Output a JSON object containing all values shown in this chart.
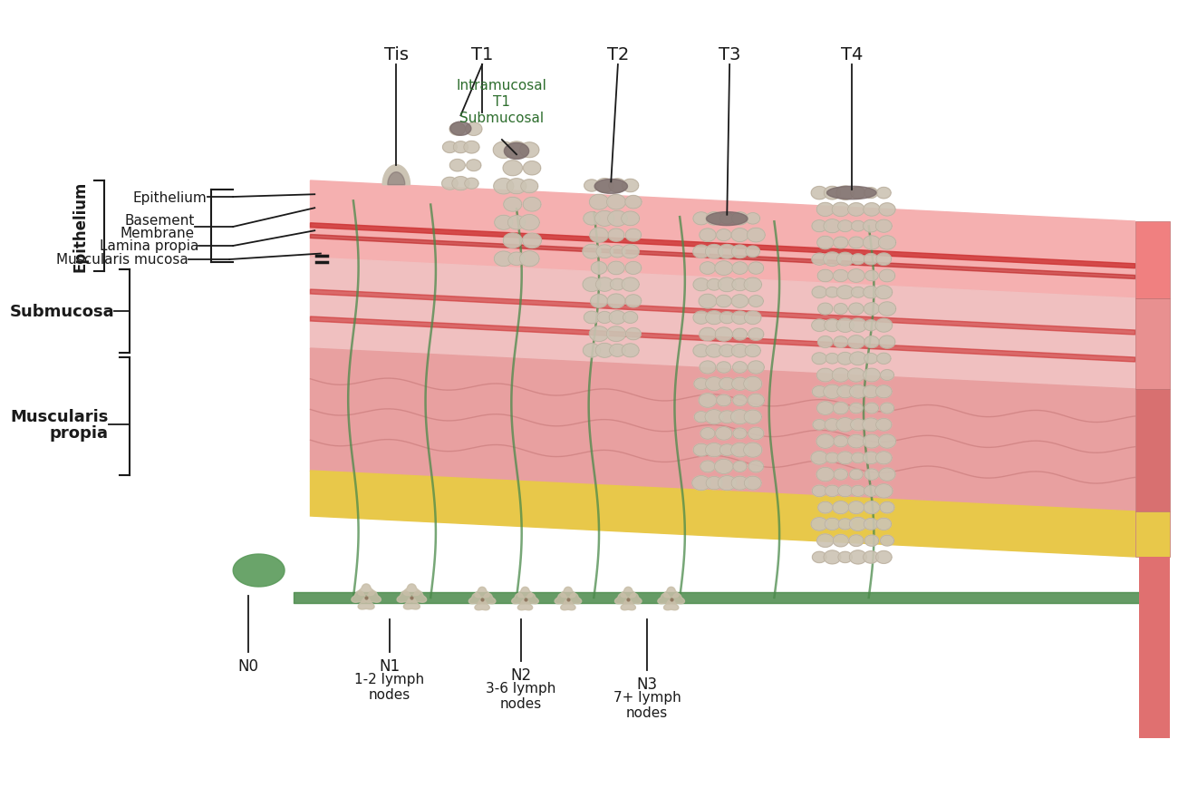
{
  "bg_color": "#ffffff",
  "annot_color": "#1a1a1a",
  "layers": {
    "epi_color": "#f5b0b0",
    "sub_color": "#f0c0c0",
    "mus_color": "#e8a0a0",
    "ser_color": "#e8c84a",
    "deep_color": "#e89090"
  },
  "tumor_color": "#ccc4b4",
  "tumor_dark": "#7a6a6a",
  "lymph_green": "#4a8a4a",
  "lymph_node_color": "#c8bea8",
  "t_labels": [
    "Tis",
    "T1",
    "T2",
    "T3",
    "T4"
  ],
  "t1_sub": [
    "Intramucosal",
    "T1",
    "Submucosal"
  ],
  "t1_sub_color": "#2e6e2e",
  "n_labels": [
    "N0",
    "N1",
    "N2",
    "N3"
  ],
  "n_sub": [
    "",
    "1-2 lymph\nnodes",
    "3-6 lymph\nnodes",
    "7+ lymph\nnodes"
  ],
  "left_labels": [
    "Epithelium",
    "Basement\nMembrane",
    "Lamina propia",
    "Muscularis mucosa"
  ],
  "side_label_epithelium": "Epithelium",
  "side_label_submucosa": "Submucosa",
  "side_label_muscularis": "Muscularis\npropia"
}
